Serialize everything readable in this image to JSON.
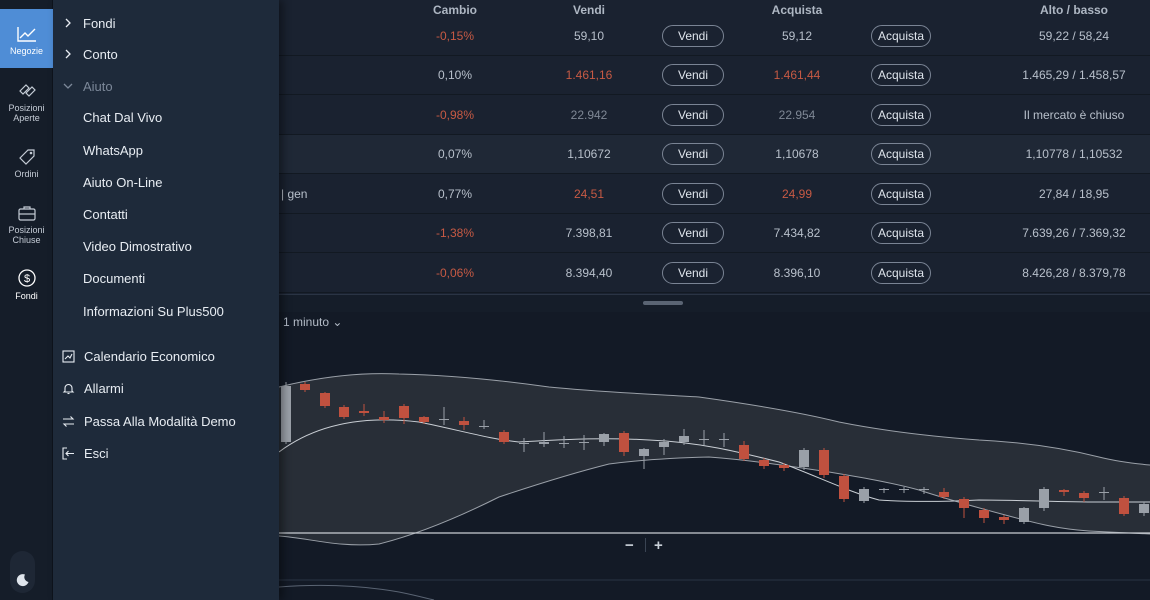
{
  "rail": {
    "items": [
      {
        "label": "Negozie",
        "icon": "trend-chart-icon",
        "active": true
      },
      {
        "label": "Posizioni\nAperte",
        "icon": "open-positions-icon"
      },
      {
        "label": "Ordini",
        "icon": "tag-icon"
      },
      {
        "label": "Posizioni\nChiuse",
        "icon": "briefcase-icon"
      },
      {
        "label": "Fondi",
        "icon": "dollar-coin-icon"
      }
    ],
    "theme_icon": "moon-icon"
  },
  "menu": {
    "fondi": "Fondi",
    "conto": "Conto",
    "aiuto": "Aiuto",
    "help_items": [
      "Chat Dal Vivo",
      "WhatsApp",
      "Aiuto On-Line",
      "Contatti",
      "Video Dimostrativo",
      "Documenti",
      "Informazioni Su Plus500"
    ],
    "calendario": "Calendario Economico",
    "allarmi": "Allarmi",
    "demo": "Passa Alla Modalità Demo",
    "esci": "Esci"
  },
  "table": {
    "headers": {
      "change": "Cambio",
      "sell": "Vendi",
      "buy": "Acquista",
      "range": "Alto / basso"
    },
    "sell_label": "Vendi",
    "buy_label": "Acquista",
    "rows": [
      {
        "name": "",
        "change": "-0,15%",
        "sell": "59,10",
        "buy": "59,12",
        "range": "59,22 / 58,24"
      },
      {
        "name": "",
        "change": "0,10%",
        "sell": "1.461,16",
        "buy": "1.461,44",
        "range": "1.465,29 / 1.458,57"
      },
      {
        "name": "",
        "change": "-0,98%",
        "sell": "22.942",
        "buy": "22.954",
        "range": "Il mercato è chiuso"
      },
      {
        "name": "",
        "change": "0,07%",
        "sell": "1,10672",
        "buy": "1,10678",
        "range": "1,10778 / 1,10532"
      },
      {
        "name": "| gen",
        "change": "0,77%",
        "sell": "24,51",
        "buy": "24,99",
        "range": "27,84 / 18,95"
      },
      {
        "name": "",
        "change": "-1,38%",
        "sell": "7.398,81",
        "buy": "7.434,82",
        "range": "7.639,26 / 7.369,32"
      },
      {
        "name": "",
        "change": "-0,06%",
        "sell": "8.394,40",
        "buy": "8.396,10",
        "range": "8.426,28 / 8.379,78"
      }
    ]
  },
  "chart": {
    "timeframe": "1 minuto ⌄",
    "zoom_out": "−",
    "zoom_in": "+",
    "colors": {
      "up": "#9aa0a8",
      "down": "#c0513f",
      "band": "#3a3f46",
      "bg": "#131a26"
    }
  }
}
